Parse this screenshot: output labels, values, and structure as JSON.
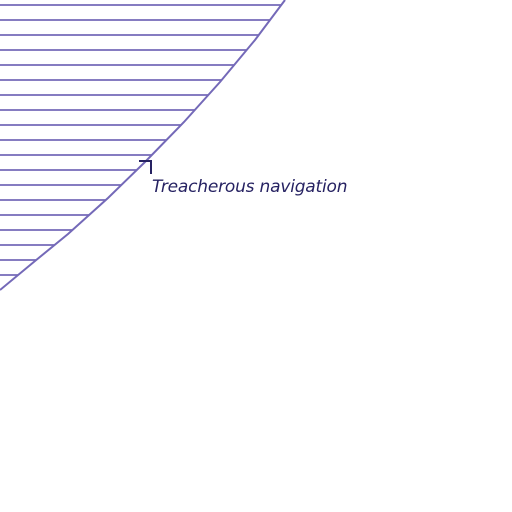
{
  "map": {
    "hazard_zone": {
      "label": "Treacherous navigation",
      "pattern": "horizontal-hatch"
    }
  },
  "colors": {
    "background": "#ffffff",
    "hatch_line": "#7469b8",
    "label_text": "#262262",
    "leader_line": "#262262"
  }
}
